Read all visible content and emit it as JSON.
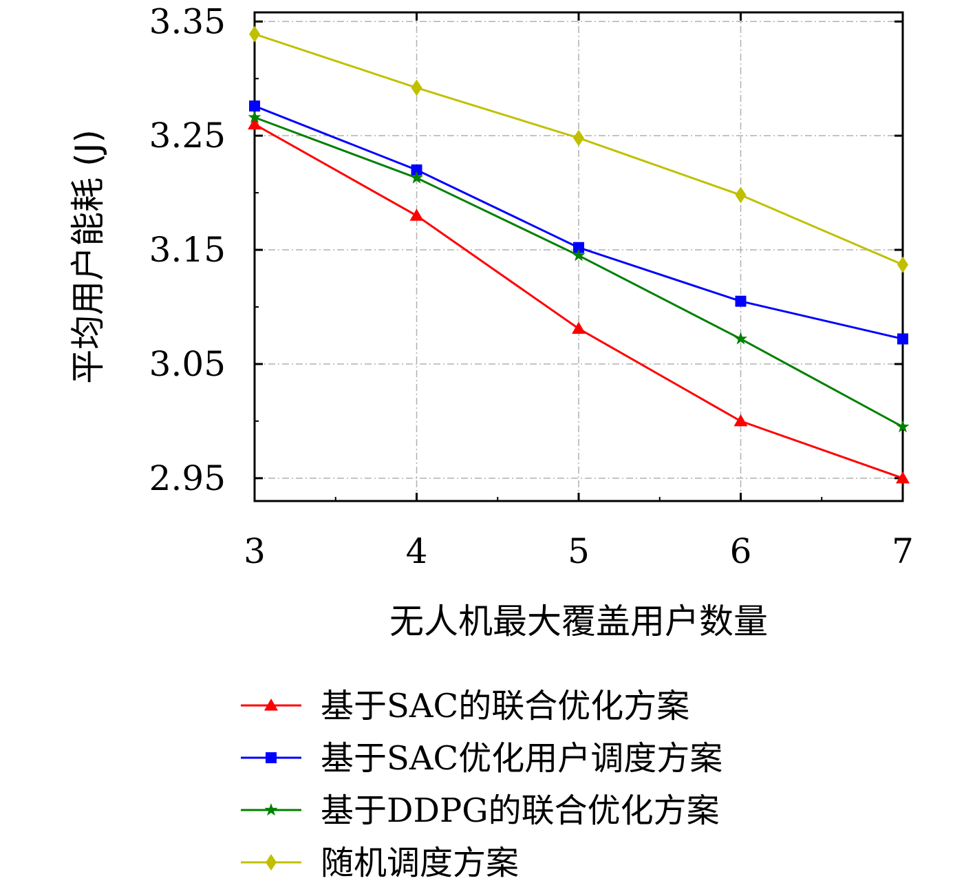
{
  "chart_data": {
    "type": "line",
    "title": "",
    "xlabel": "无人机最大覆盖用户数量",
    "ylabel": "平均用户能耗 (J)",
    "x": [
      3,
      4,
      5,
      6,
      7
    ],
    "xticks": [
      "3",
      "4",
      "5",
      "6",
      "7"
    ],
    "xlim": [
      3,
      7
    ],
    "yticks": [
      "2.95",
      "3.05",
      "3.15",
      "3.25",
      "3.35"
    ],
    "ytick_values": [
      2.95,
      3.05,
      3.15,
      3.25,
      3.35
    ],
    "ylim": [
      2.93,
      3.358
    ],
    "grid": true,
    "legend_position": "bottom",
    "series": [
      {
        "name": "基于SAC的联合优化方案",
        "color": "#ff0000",
        "marker": "triangle",
        "values": [
          3.26,
          3.18,
          3.081,
          3.0,
          2.95
        ]
      },
      {
        "name": "基于SAC优化用户调度方案",
        "color": "#0000ff",
        "marker": "square",
        "values": [
          3.276,
          3.22,
          3.152,
          3.105,
          3.072
        ]
      },
      {
        "name": "基于DDPG的联合优化方案",
        "color": "#008000",
        "marker": "star",
        "values": [
          3.266,
          3.213,
          3.145,
          3.072,
          2.995
        ]
      },
      {
        "name": "随机调度方案",
        "color": "#c0c000",
        "marker": "diamond",
        "values": [
          3.339,
          3.292,
          3.248,
          3.198,
          3.137
        ]
      }
    ]
  }
}
